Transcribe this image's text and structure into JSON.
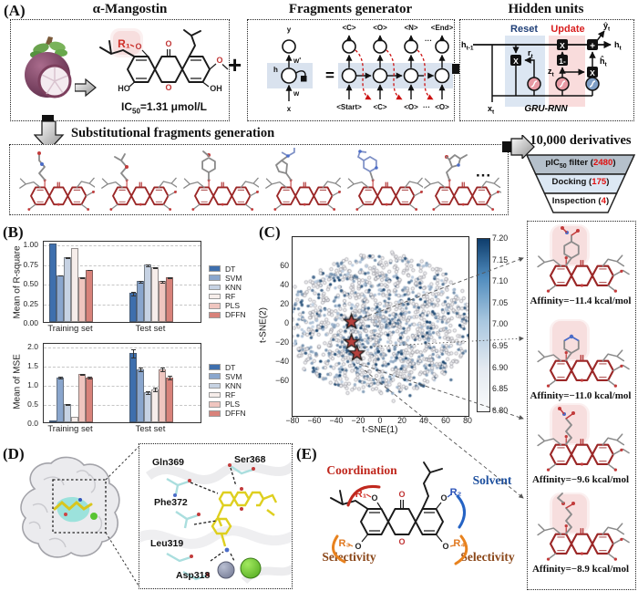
{
  "panelA": {
    "label": "(A)",
    "plus": "+",
    "box1": {
      "title": "α-Mangostin",
      "r1": "R₁",
      "o_r1": "O",
      "o_carbonyl": "O",
      "o_ring": "O",
      "o_methoxy": "O",
      "ho": "HO",
      "oh": "OH",
      "ic50_a": "IC",
      "ic50_sub": "50",
      "ic50_b": "=1.31 μmol/L"
    },
    "box2": {
      "title": "Fragments generator",
      "y": "y",
      "wprime": "w'",
      "h": "h",
      "w": "w",
      "x": "x",
      "equals": "=",
      "top_tokens": [
        "<C>",
        "<O>",
        "<N>",
        "<End>"
      ],
      "bottom_tokens": [
        "<Start>",
        "<C>",
        "<O>",
        "<O>"
      ],
      "dots_top": "···",
      "dots_bottom": "···"
    },
    "box3": {
      "title": "Hidden units",
      "reset": "Reset",
      "update": "Update",
      "h_prev": {
        "a": "h",
        "sub": "t-1"
      },
      "r_t": {
        "a": "r",
        "sub": "t"
      },
      "z_t": {
        "a": "z",
        "sub": "t"
      },
      "h_hat": {
        "a": "ĥ",
        "sub": "t"
      },
      "y_hat": {
        "a": "ŷ",
        "sub": "t"
      },
      "h_t": {
        "a": "h",
        "sub": "t"
      },
      "x_t": {
        "a": "x",
        "sub": "t"
      },
      "op_mul1": "X",
      "op_mul2": "X",
      "op_mul3": "X",
      "op_one_minus": "1-",
      "op_add": "+",
      "name": "GRU-RNN"
    }
  },
  "middle": {
    "title": "Substitutional fragments generation",
    "dots": "···",
    "derivatives_title": "10,000 derivatives",
    "funnel": [
      {
        "a": "pIC",
        "sub": "50",
        "b": " filter (",
        "num": "2480",
        "c": ")",
        "color": "#b5c0cb"
      },
      {
        "a": "Docking (",
        "sub": "",
        "b": "",
        "num": "175",
        "c": ")",
        "color": "#dce8f4"
      },
      {
        "a": "Inspection (",
        "sub": "",
        "b": "",
        "num": "4",
        "c": ")",
        "color": "#ffffff"
      }
    ]
  },
  "panelB": {
    "label": "(B)"
  },
  "panelC": {
    "label": "(C)"
  },
  "panelD": {
    "label": "(D)",
    "residues": [
      "Gln369",
      "Ser368",
      "Phe372",
      "Leu319",
      "Asp318"
    ]
  },
  "panelE": {
    "label": "(E)",
    "coordination": "Coordination",
    "solvent": "Solvent",
    "selectivity_left": "Selectivity",
    "selectivity_right": "Selectivity",
    "r1": "R₁",
    "r2": "R₂",
    "r3": "R₃",
    "r4": "R₄",
    "o1": "O",
    "o2": "O",
    "o3": "O",
    "o4": "O",
    "o_carbonyl": "O",
    "o_ring": "O"
  },
  "right_column": {
    "affinities": [
      "Affinity=−11.4 kcal/mol",
      "Affinity=−11.0 kcal/mol",
      "Affinity=−9.6 kcal/mol",
      "Affinity=−8.9 kcal/mol"
    ]
  },
  "colors": {
    "star": "#b5403c",
    "accent_number_red": "#e01010",
    "reset_blue": "#1f3f77",
    "update_red": "#d91f1f",
    "core_red": "#9b2727",
    "highlight_pink": "#f7dede"
  },
  "chart_data": [
    {
      "id": "rsquare",
      "type": "bar",
      "ylabel": "Mean of R-square",
      "categories": [
        "Training set",
        "Test set"
      ],
      "series": [
        {
          "name": "DT",
          "values": [
            1.0,
            0.37
          ],
          "errors": [
            0.005,
            0.03
          ],
          "color": "#3e6fad"
        },
        {
          "name": "SVM",
          "values": [
            0.6,
            0.52
          ],
          "errors": [
            0.01,
            0.02
          ],
          "color": "#8aa6cd"
        },
        {
          "name": "KNN",
          "values": [
            0.83,
            0.73
          ],
          "errors": [
            0.01,
            0.015
          ],
          "color": "#c6d2e3"
        },
        {
          "name": "RF",
          "values": [
            0.95,
            0.7
          ],
          "errors": [
            0.005,
            0.015
          ],
          "color": "#f6edea"
        },
        {
          "name": "PLS",
          "values": [
            0.57,
            0.52
          ],
          "errors": [
            0.01,
            0.02
          ],
          "color": "#efc5bf"
        },
        {
          "name": "DFFN",
          "values": [
            0.67,
            0.57
          ],
          "errors": [
            0.01,
            0.015
          ],
          "color": "#d8827a"
        }
      ],
      "yticks": [
        0.0,
        0.25,
        0.5,
        0.75,
        1.0
      ],
      "ytick_labels": [
        "0.00",
        "0.25",
        "0.50",
        "0.75",
        "1.00"
      ],
      "ylim": [
        0,
        1.05
      ],
      "grid": "dashed",
      "legend_position": "right"
    },
    {
      "id": "mse",
      "type": "bar",
      "ylabel": "Mean of MSE",
      "categories": [
        "Training set",
        "Test set"
      ],
      "series": [
        {
          "name": "DT",
          "values": [
            0.01,
            1.82
          ],
          "errors": [
            0.005,
            0.12
          ],
          "color": "#3e6fad"
        },
        {
          "name": "SVM",
          "values": [
            1.18,
            1.39
          ],
          "errors": [
            0.04,
            0.06
          ],
          "color": "#8aa6cd"
        },
        {
          "name": "KNN",
          "values": [
            0.48,
            0.78
          ],
          "errors": [
            0.03,
            0.05
          ],
          "color": "#c6d2e3"
        },
        {
          "name": "RF",
          "values": [
            0.15,
            0.87
          ],
          "errors": [
            0.015,
            0.05
          ],
          "color": "#f6edea"
        },
        {
          "name": "PLS",
          "values": [
            1.27,
            1.39
          ],
          "errors": [
            0.03,
            0.06
          ],
          "color": "#efc5bf"
        },
        {
          "name": "DFFN",
          "values": [
            1.18,
            1.18
          ],
          "errors": [
            0.03,
            0.05
          ],
          "color": "#d8827a"
        }
      ],
      "yticks": [
        0.0,
        0.5,
        1.0,
        1.5,
        2.0
      ],
      "ytick_labels": [
        "0.0",
        "0.5",
        "1.0",
        "1.5",
        "2.0"
      ],
      "ylim": [
        0,
        2.1
      ],
      "grid": "dashed",
      "legend_position": "right"
    },
    {
      "id": "tsne",
      "type": "scatter",
      "xlabel": "t-SNE(1)",
      "ylabel": "t-SNE(2)",
      "xticks": [
        -80,
        -60,
        -40,
        -20,
        0,
        20,
        40,
        60,
        80
      ],
      "xtick_labels": [
        "−80",
        "−60",
        "−40",
        "−20",
        "0",
        "20",
        "40",
        "60",
        "80"
      ],
      "yticks": [
        60,
        40,
        20,
        0,
        -20,
        -40,
        -60
      ],
      "ytick_labels": [
        "60",
        "40",
        "20",
        "0",
        "−20",
        "−40",
        "−60"
      ],
      "xlim": [
        -95,
        100
      ],
      "ylim": [
        -95,
        90
      ],
      "colorbar": {
        "min": 6.8,
        "max": 7.2,
        "tick_labels": [
          "7.20",
          "7.15",
          "7.10",
          "7.05",
          "7.00",
          "6.95",
          "6.90",
          "6.85",
          "6.80"
        ]
      },
      "stars": [
        {
          "x": -27,
          "y": 2
        },
        {
          "x": -27,
          "y": -19
        },
        {
          "x": -22,
          "y": -31
        }
      ],
      "points": {
        "n": 1500,
        "seed": 1234567,
        "distribution": "gaussian-blob",
        "frac_pale": 0.58
      }
    }
  ]
}
